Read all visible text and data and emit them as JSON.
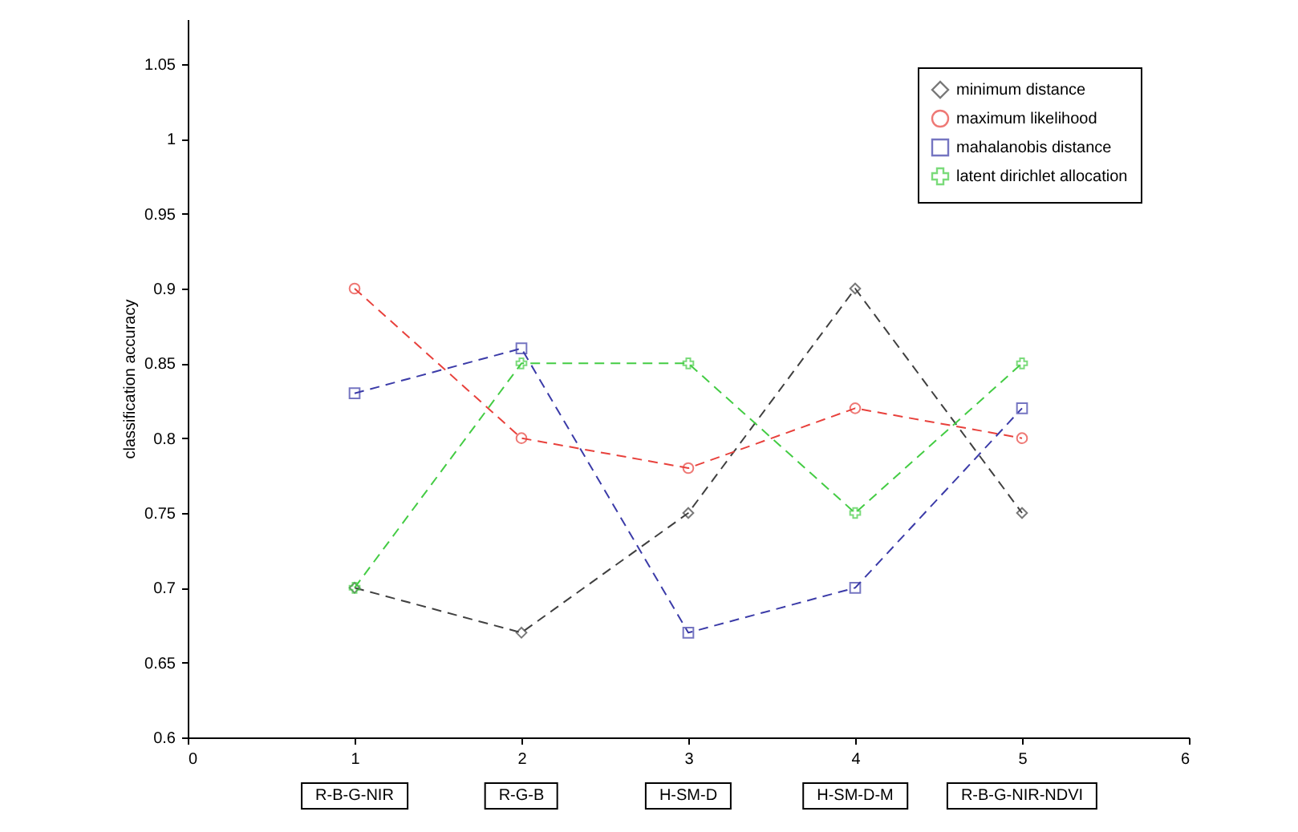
{
  "chart_data": {
    "type": "line",
    "ylabel": "classification accuracy",
    "x": [
      1,
      2,
      3,
      4,
      5
    ],
    "xlim": [
      0,
      6
    ],
    "xticks": [
      0,
      1,
      2,
      3,
      4,
      5,
      6
    ],
    "ylim": [
      0.6,
      1.08
    ],
    "yticks": [
      0.6,
      0.65,
      0.7,
      0.75,
      0.8,
      0.85,
      0.9,
      0.95,
      1,
      1.05
    ],
    "grid": false,
    "legend": "top right",
    "line_style": "dashed",
    "series": [
      {
        "name": "minimum distance",
        "color": "#404040",
        "marker": "diamond",
        "values": [
          0.7,
          0.67,
          0.75,
          0.9,
          0.75
        ]
      },
      {
        "name": "maximum likelihood",
        "color": "#e8413c",
        "marker": "circle",
        "values": [
          0.9,
          0.8,
          0.78,
          0.82,
          0.8
        ]
      },
      {
        "name": "mahalanobis distance",
        "color": "#3b3ba8",
        "marker": "square",
        "values": [
          0.83,
          0.86,
          0.67,
          0.7,
          0.82
        ]
      },
      {
        "name": "latent dirichlet allocation",
        "color": "#44cc44",
        "marker": "cross",
        "values": [
          0.7,
          0.85,
          0.85,
          0.75,
          0.85
        ]
      }
    ],
    "annotations": [
      "R-B-G-NIR",
      "R-G-B",
      "H-SM-D",
      "H-SM-D-M",
      "R-B-G-NIR-NDVI"
    ]
  }
}
